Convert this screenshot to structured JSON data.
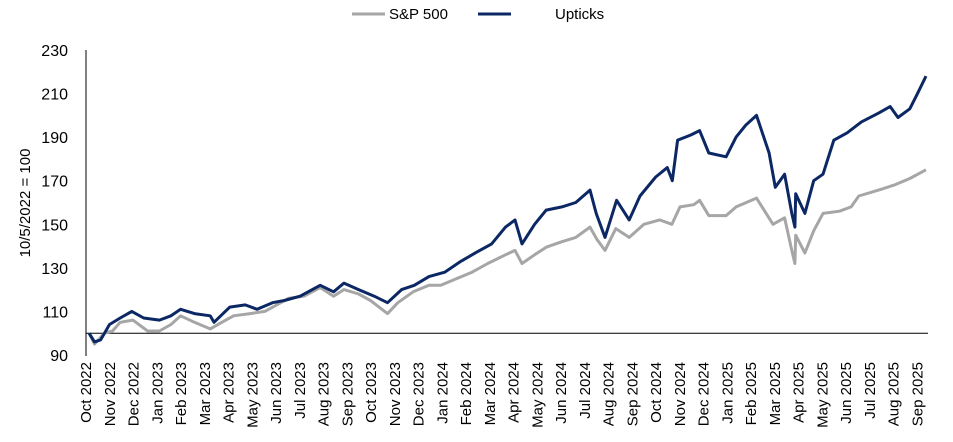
{
  "chart_data": {
    "type": "line",
    "title": "",
    "xlabel": "",
    "ylabel": "10/5/2022 = 100",
    "ylim": [
      90,
      230
    ],
    "yticks": [
      90,
      110,
      130,
      150,
      170,
      190,
      210,
      230
    ],
    "reference_line": 100,
    "grid": false,
    "legend_position": "top-center",
    "x_tick_labels": [
      "Oct 2022",
      "Nov 2022",
      "Dec 2022",
      "Jan 2023",
      "Feb 2023",
      "Mar 2023",
      "Apr 2023",
      "May 2023",
      "Jun 2023",
      "Jul 2023",
      "Aug 2023",
      "Sep 2023",
      "Oct 2023",
      "Nov 2023",
      "Dec 2023",
      "Jan 2024",
      "Feb 2024",
      "Mar 2024",
      "Apr 2024",
      "May 2024",
      "Jun 2024",
      "Jul 2024",
      "Aug 2024",
      "Sep 2024",
      "Oct 2024",
      "Nov 2024",
      "Dec 2024",
      "Jan 2025",
      "Feb 2025",
      "Mar 2025",
      "Apr 2025",
      "May 2025",
      "Jun 2025",
      "Jul 2025",
      "Aug 2025",
      "Sep 2025"
    ],
    "series": [
      {
        "name": "S&P 500",
        "color": "#a6a6a6",
        "points": [
          [
            "2022-10-05",
            100
          ],
          [
            "2022-10-12",
            95
          ],
          [
            "2022-10-25",
            100
          ],
          [
            "2022-11-05",
            101
          ],
          [
            "2022-11-15",
            105
          ],
          [
            "2022-12-01",
            106
          ],
          [
            "2022-12-20",
            101
          ],
          [
            "2023-01-05",
            101
          ],
          [
            "2023-01-20",
            104
          ],
          [
            "2023-02-02",
            108
          ],
          [
            "2023-02-20",
            105
          ],
          [
            "2023-03-10",
            102
          ],
          [
            "2023-03-25",
            105
          ],
          [
            "2023-04-10",
            108
          ],
          [
            "2023-05-01",
            109
          ],
          [
            "2023-05-20",
            110
          ],
          [
            "2023-06-05",
            113
          ],
          [
            "2023-06-20",
            116
          ],
          [
            "2023-07-10",
            117
          ],
          [
            "2023-07-31",
            121
          ],
          [
            "2023-08-18",
            117
          ],
          [
            "2023-09-01",
            120
          ],
          [
            "2023-09-20",
            118
          ],
          [
            "2023-10-05",
            115
          ],
          [
            "2023-10-27",
            109
          ],
          [
            "2023-11-10",
            114
          ],
          [
            "2023-11-30",
            119
          ],
          [
            "2023-12-20",
            122
          ],
          [
            "2024-01-05",
            122
          ],
          [
            "2024-01-25",
            125
          ],
          [
            "2024-02-15",
            128
          ],
          [
            "2024-03-05",
            132
          ],
          [
            "2024-03-28",
            136
          ],
          [
            "2024-04-10",
            138
          ],
          [
            "2024-04-19",
            132
          ],
          [
            "2024-05-05",
            136
          ],
          [
            "2024-05-20",
            139.5
          ],
          [
            "2024-06-10",
            142
          ],
          [
            "2024-06-28",
            144
          ],
          [
            "2024-07-16",
            148.7
          ],
          [
            "2024-07-25",
            143
          ],
          [
            "2024-08-05",
            138
          ],
          [
            "2024-08-19",
            148
          ],
          [
            "2024-09-06",
            144
          ],
          [
            "2024-09-25",
            150
          ],
          [
            "2024-10-15",
            152
          ],
          [
            "2024-10-31",
            150
          ],
          [
            "2024-11-11",
            158
          ],
          [
            "2024-11-29",
            159
          ],
          [
            "2024-12-06",
            161
          ],
          [
            "2024-12-18",
            154
          ],
          [
            "2025-01-10",
            154
          ],
          [
            "2025-01-23",
            158
          ],
          [
            "2025-02-19",
            162
          ],
          [
            "2025-03-10",
            150
          ],
          [
            "2025-03-25",
            153
          ],
          [
            "2025-04-04",
            138
          ],
          [
            "2025-04-08",
            132
          ],
          [
            "2025-04-09",
            145
          ],
          [
            "2025-04-21",
            136.8
          ],
          [
            "2025-05-02",
            147
          ],
          [
            "2025-05-14",
            155
          ],
          [
            "2025-06-05",
            156
          ],
          [
            "2025-06-20",
            158
          ],
          [
            "2025-06-30",
            163
          ],
          [
            "2025-07-28",
            166
          ],
          [
            "2025-08-15",
            168
          ],
          [
            "2025-09-05",
            171
          ],
          [
            "2025-09-26",
            175
          ]
        ]
      },
      {
        "name": "Upticks",
        "color": "#0c2864",
        "points": [
          [
            "2022-10-05",
            100
          ],
          [
            "2022-10-12",
            96
          ],
          [
            "2022-10-20",
            97
          ],
          [
            "2022-11-01",
            104
          ],
          [
            "2022-11-15",
            107
          ],
          [
            "2022-11-30",
            110
          ],
          [
            "2022-12-15",
            107
          ],
          [
            "2023-01-05",
            106
          ],
          [
            "2023-01-20",
            108
          ],
          [
            "2023-02-02",
            111
          ],
          [
            "2023-02-20",
            109
          ],
          [
            "2023-03-10",
            108
          ],
          [
            "2023-03-15",
            105
          ],
          [
            "2023-04-05",
            112
          ],
          [
            "2023-04-25",
            113
          ],
          [
            "2023-05-10",
            111
          ],
          [
            "2023-05-30",
            114
          ],
          [
            "2023-06-15",
            115
          ],
          [
            "2023-07-05",
            117
          ],
          [
            "2023-07-31",
            122
          ],
          [
            "2023-08-18",
            119
          ],
          [
            "2023-09-01",
            123
          ],
          [
            "2023-09-20",
            120
          ],
          [
            "2023-10-10",
            117
          ],
          [
            "2023-10-27",
            114
          ],
          [
            "2023-11-15",
            120
          ],
          [
            "2023-12-01",
            122
          ],
          [
            "2023-12-20",
            126
          ],
          [
            "2024-01-10",
            128
          ],
          [
            "2024-01-31",
            133
          ],
          [
            "2024-02-20",
            137
          ],
          [
            "2024-03-10",
            141
          ],
          [
            "2024-03-28",
            148.7
          ],
          [
            "2024-04-10",
            152
          ],
          [
            "2024-04-19",
            141
          ],
          [
            "2024-05-05",
            150
          ],
          [
            "2024-05-20",
            156.5
          ],
          [
            "2024-06-10",
            158
          ],
          [
            "2024-06-28",
            160
          ],
          [
            "2024-07-16",
            165.7
          ],
          [
            "2024-07-24",
            155
          ],
          [
            "2024-08-05",
            144
          ],
          [
            "2024-08-20",
            161
          ],
          [
            "2024-09-06",
            152
          ],
          [
            "2024-09-20",
            163
          ],
          [
            "2024-10-10",
            171.7
          ],
          [
            "2024-10-25",
            176
          ],
          [
            "2024-11-01",
            170
          ],
          [
            "2024-11-08",
            188.6
          ],
          [
            "2024-11-25",
            191
          ],
          [
            "2024-12-06",
            193
          ],
          [
            "2024-12-18",
            182.7
          ],
          [
            "2025-01-10",
            181
          ],
          [
            "2025-01-23",
            190
          ],
          [
            "2025-02-05",
            195.5
          ],
          [
            "2025-02-19",
            200
          ],
          [
            "2025-03-05",
            182.7
          ],
          [
            "2025-03-13",
            167
          ],
          [
            "2025-03-25",
            173
          ],
          [
            "2025-04-04",
            155
          ],
          [
            "2025-04-08",
            148.7
          ],
          [
            "2025-04-09",
            164
          ],
          [
            "2025-04-21",
            155
          ],
          [
            "2025-05-02",
            170
          ],
          [
            "2025-05-14",
            173
          ],
          [
            "2025-05-28",
            188.6
          ],
          [
            "2025-06-15",
            192
          ],
          [
            "2025-07-03",
            197
          ],
          [
            "2025-07-25",
            201
          ],
          [
            "2025-08-10",
            204
          ],
          [
            "2025-08-20",
            199
          ],
          [
            "2025-09-05",
            203
          ],
          [
            "2025-09-15",
            210
          ],
          [
            "2025-09-26",
            218
          ]
        ]
      }
    ]
  }
}
